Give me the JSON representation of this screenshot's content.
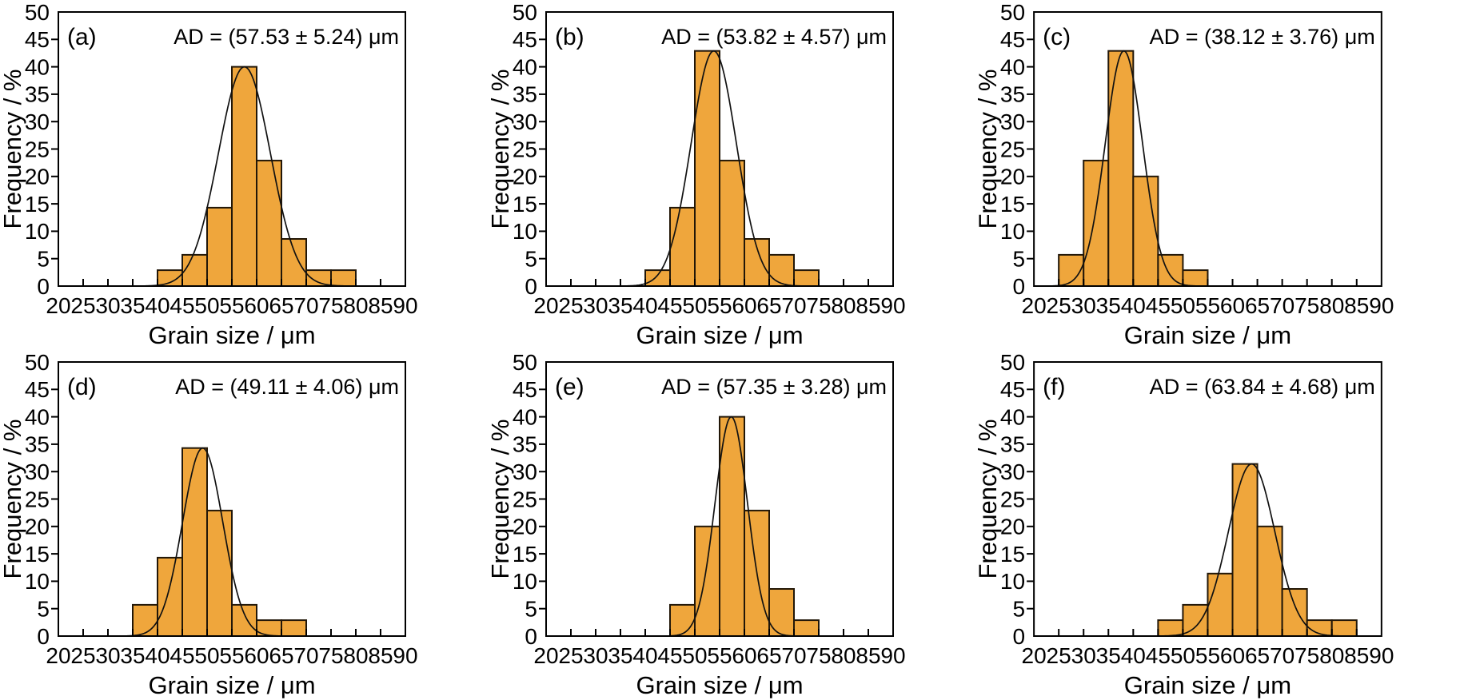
{
  "figure": {
    "background": "#ffffff",
    "axes": {
      "xlabel": "Grain size / μm",
      "ylabel": "Frequency / %",
      "xlim": [
        20,
        90
      ],
      "ylim": [
        0,
        50
      ],
      "xticks": [
        20,
        25,
        30,
        35,
        40,
        45,
        50,
        55,
        60,
        65,
        70,
        75,
        80,
        85,
        90
      ],
      "yticks": [
        0,
        5,
        10,
        15,
        20,
        25,
        30,
        35,
        40,
        45,
        50
      ],
      "grid": false,
      "box": true,
      "xtick_direction": "in",
      "ytick_direction": "out"
    },
    "colors": {
      "bar_fill": "#EFA63C",
      "bar_stroke": "#221708",
      "curve": "#111111",
      "axis": "#000000",
      "text": "#000000"
    }
  },
  "chart_data": [
    {
      "type": "histogram",
      "panel_label": "(a)",
      "annotation": "AD = (57.53 ± 5.24) μm",
      "xlabel": "Grain size / μm",
      "ylabel": "Frequency / %",
      "xlim": [
        20,
        90
      ],
      "ylim": [
        0,
        50
      ],
      "bin_width": 5,
      "bin_edges": [
        40,
        45,
        50,
        55,
        60,
        65,
        70,
        75,
        80
      ],
      "frequencies_percent": [
        2.9,
        5.7,
        14.3,
        40,
        22.9,
        8.6,
        2.9,
        2.9
      ],
      "gaussian_fit": {
        "mean": 57.53,
        "sigma": 5.24,
        "amplitude_percent": 40
      }
    },
    {
      "type": "histogram",
      "panel_label": "(b)",
      "annotation": "AD = (53.82 ± 4.57) μm",
      "xlabel": "Grain size / μm",
      "ylabel": "Frequency / %",
      "xlim": [
        20,
        90
      ],
      "ylim": [
        0,
        50
      ],
      "bin_width": 5,
      "bin_edges": [
        40,
        45,
        50,
        55,
        60,
        65,
        70,
        75
      ],
      "frequencies_percent": [
        2.9,
        14.3,
        42.9,
        22.9,
        8.6,
        5.7,
        2.9
      ],
      "gaussian_fit": {
        "mean": 53.82,
        "sigma": 4.57,
        "amplitude_percent": 42.9
      }
    },
    {
      "type": "histogram",
      "panel_label": "(c)",
      "annotation": "AD = (38.12 ± 3.76) μm",
      "xlabel": "Grain size / μm",
      "ylabel": "Frequency / %",
      "xlim": [
        20,
        90
      ],
      "ylim": [
        0,
        50
      ],
      "bin_width": 5,
      "bin_edges": [
        25,
        30,
        35,
        40,
        45,
        50,
        55
      ],
      "frequencies_percent": [
        5.7,
        22.9,
        42.9,
        20,
        5.7,
        2.9
      ],
      "gaussian_fit": {
        "mean": 38.12,
        "sigma": 3.76,
        "amplitude_percent": 42.9
      }
    },
    {
      "type": "histogram",
      "panel_label": "(d)",
      "annotation": "AD = (49.11 ± 4.06) μm",
      "xlabel": "Grain size / μm",
      "ylabel": "Frequency / %",
      "xlim": [
        20,
        90
      ],
      "ylim": [
        0,
        50
      ],
      "bin_width": 5,
      "bin_edges": [
        35,
        40,
        45,
        50,
        55,
        60,
        65,
        70
      ],
      "frequencies_percent": [
        5.7,
        14.3,
        34.3,
        22.9,
        5.7,
        2.9,
        2.9
      ],
      "gaussian_fit": {
        "mean": 49.11,
        "sigma": 4.06,
        "amplitude_percent": 34.3
      }
    },
    {
      "type": "histogram",
      "panel_label": "(e)",
      "annotation": "AD = (57.35 ± 3.28) μm",
      "xlabel": "Grain size / μm",
      "ylabel": "Frequency / %",
      "xlim": [
        20,
        90
      ],
      "ylim": [
        0,
        50
      ],
      "bin_width": 5,
      "bin_edges": [
        45,
        50,
        55,
        60,
        65,
        70,
        75
      ],
      "frequencies_percent": [
        5.7,
        20,
        40,
        22.9,
        8.6,
        2.9
      ],
      "gaussian_fit": {
        "mean": 57.35,
        "sigma": 3.28,
        "amplitude_percent": 40
      }
    },
    {
      "type": "histogram",
      "panel_label": "(f)",
      "annotation": "AD = (63.84 ± 4.68) μm",
      "xlabel": "Grain size / μm",
      "ylabel": "Frequency / %",
      "xlim": [
        20,
        90
      ],
      "ylim": [
        0,
        50
      ],
      "bin_width": 5,
      "bin_edges": [
        45,
        50,
        55,
        60,
        65,
        70,
        75,
        80,
        85
      ],
      "frequencies_percent": [
        2.9,
        5.7,
        11.4,
        31.4,
        20,
        8.6,
        2.9,
        2.9
      ],
      "gaussian_fit": {
        "mean": 63.84,
        "sigma": 4.68,
        "amplitude_percent": 31.4
      }
    }
  ]
}
